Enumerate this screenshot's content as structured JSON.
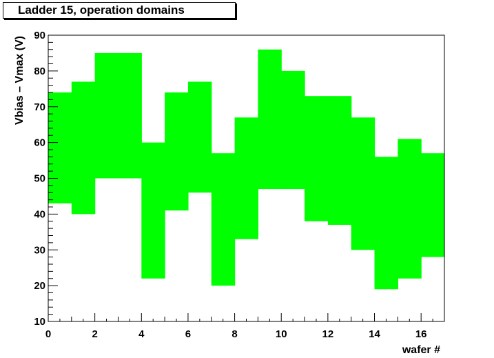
{
  "chart_data": {
    "type": "bar",
    "title": "Ladder 15, operation domains",
    "xlabel": "wafer #",
    "ylabel": "Vbias – Vmax (V)",
    "xlim": [
      0,
      17
    ],
    "ylim": [
      10,
      90
    ],
    "x_ticks": [
      "0",
      "2",
      "4",
      "6",
      "8",
      "10",
      "12",
      "14",
      "16"
    ],
    "y_ticks": [
      "10",
      "20",
      "30",
      "40",
      "50",
      "60",
      "70",
      "80",
      "90"
    ],
    "series": [
      {
        "color": "#00ff00",
        "bins": [
          {
            "x0": 0,
            "x1": 1,
            "low": 43,
            "high": 74
          },
          {
            "x0": 1,
            "x1": 2,
            "low": 40,
            "high": 77
          },
          {
            "x0": 2,
            "x1": 3,
            "low": 50,
            "high": 85
          },
          {
            "x0": 3,
            "x1": 4,
            "low": 50,
            "high": 85
          },
          {
            "x0": 4,
            "x1": 5,
            "low": 22,
            "high": 60
          },
          {
            "x0": 5,
            "x1": 6,
            "low": 41,
            "high": 74
          },
          {
            "x0": 6,
            "x1": 7,
            "low": 46,
            "high": 77
          },
          {
            "x0": 7,
            "x1": 8,
            "low": 20,
            "high": 57
          },
          {
            "x0": 8,
            "x1": 9,
            "low": 33,
            "high": 67
          },
          {
            "x0": 9,
            "x1": 10,
            "low": 47,
            "high": 86
          },
          {
            "x0": 10,
            "x1": 11,
            "low": 47,
            "high": 80
          },
          {
            "x0": 11,
            "x1": 12,
            "low": 38,
            "high": 73
          },
          {
            "x0": 12,
            "x1": 13,
            "low": 37,
            "high": 73
          },
          {
            "x0": 13,
            "x1": 14,
            "low": 30,
            "high": 67
          },
          {
            "x0": 14,
            "x1": 15,
            "low": 19,
            "high": 56
          },
          {
            "x0": 15,
            "x1": 16,
            "low": 22,
            "high": 61
          },
          {
            "x0": 16,
            "x1": 17,
            "low": 28,
            "high": 57
          }
        ]
      }
    ]
  }
}
